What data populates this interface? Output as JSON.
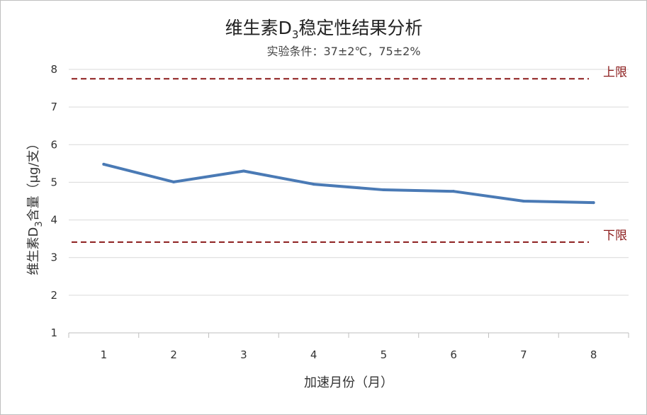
{
  "chart_data": {
    "type": "line",
    "title_main": "维生素D",
    "title_sub": "3",
    "title_rest": "稳定性结果分析",
    "subtitle": "实验条件：37±2℃，75±2%",
    "xlabel": "加速月份（月）",
    "ylabel_pre": "维生素D",
    "ylabel_sub": "3",
    "ylabel_post": "含量（μg/支）",
    "categories": [
      "1",
      "2",
      "3",
      "4",
      "5",
      "6",
      "7",
      "8"
    ],
    "yticks": [
      "1",
      "2",
      "3",
      "4",
      "5",
      "6",
      "7",
      "8"
    ],
    "ylim": [
      1,
      8
    ],
    "grid": true,
    "series": [
      {
        "values": [
          5.48,
          5.01,
          5.3,
          4.95,
          4.8,
          4.76,
          4.5,
          4.46
        ],
        "color": "#4a7ab5"
      }
    ],
    "limits": [
      {
        "label": "上限",
        "value": 7.75,
        "color": "#8b1a1a"
      },
      {
        "label": "下限",
        "value": 3.41,
        "color": "#8b1a1a"
      }
    ]
  }
}
